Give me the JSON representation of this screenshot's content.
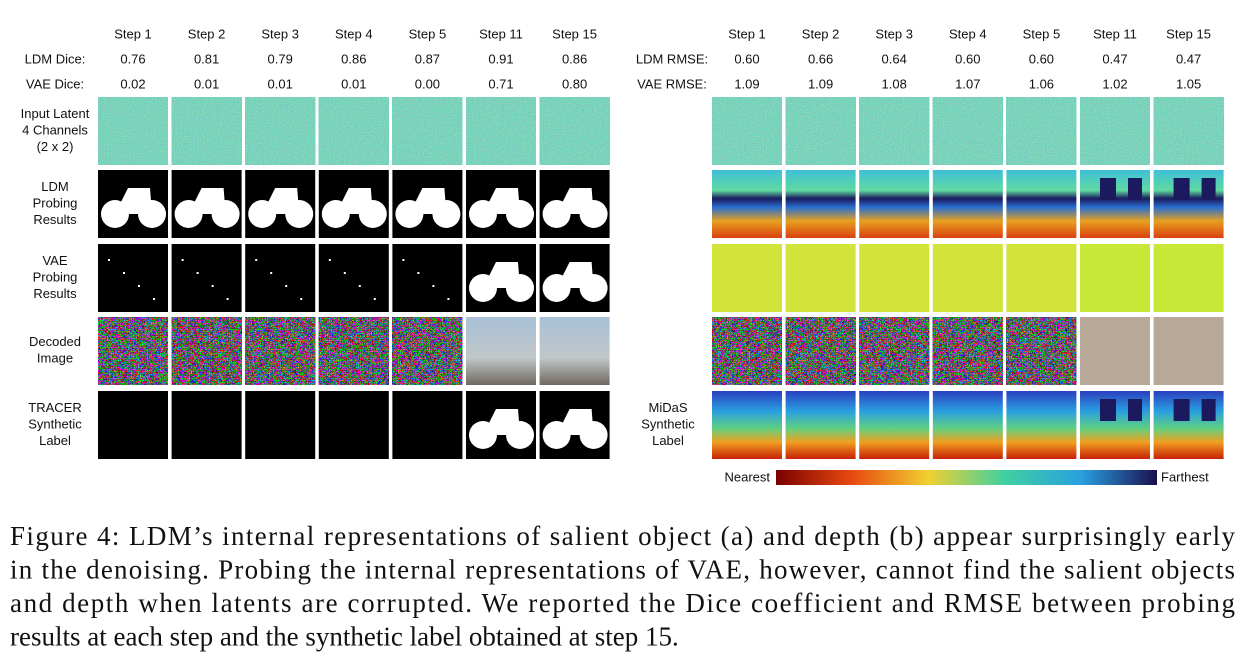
{
  "panel_a": {
    "steps": [
      "Step 1",
      "Step 2",
      "Step 3",
      "Step 4",
      "Step 5",
      "Step 11",
      "Step 15"
    ],
    "metrics": [
      {
        "label": "LDM Dice:",
        "values": [
          "0.76",
          "0.81",
          "0.79",
          "0.86",
          "0.87",
          "0.91",
          "0.86"
        ]
      },
      {
        "label": "VAE Dice:",
        "values": [
          "0.02",
          "0.01",
          "0.01",
          "0.01",
          "0.00",
          "0.71",
          "0.80"
        ]
      }
    ],
    "row_labels": [
      [
        "Input Latent",
        "4 Channels",
        "(2 x 2)"
      ],
      [
        "LDM",
        "Probing",
        "Results"
      ],
      [
        "VAE",
        "Probing",
        "Results"
      ],
      [
        "Decoded",
        "Image"
      ],
      [
        "TRACER",
        "Synthetic",
        "Label"
      ]
    ]
  },
  "panel_b": {
    "steps": [
      "Step 1",
      "Step 2",
      "Step 3",
      "Step 4",
      "Step 5",
      "Step 11",
      "Step 15"
    ],
    "metrics": [
      {
        "label": "LDM RMSE:",
        "values": [
          "0.60",
          "0.66",
          "0.64",
          "0.60",
          "0.60",
          "0.47",
          "0.47"
        ]
      },
      {
        "label": "VAE RMSE:",
        "values": [
          "1.09",
          "1.09",
          "1.08",
          "1.07",
          "1.06",
          "1.02",
          "1.05"
        ]
      }
    ],
    "row_labels": [
      [
        "MiDaS",
        "Synthetic",
        "Label"
      ]
    ],
    "colorbar": {
      "min_label": "Nearest",
      "max_label": "Farthest"
    }
  },
  "caption": [
    "Figure 4: LDM’s internal representations of salient object (a) and depth (b) appear surprisingly early",
    "in the denoising. Probing the internal representations of VAE, however, cannot find the salient objects",
    "and depth when latents are corrupted. We reported the Dice coefficient and RMSE between probing",
    "results at each step and the synthetic label obtained at step 15."
  ]
}
